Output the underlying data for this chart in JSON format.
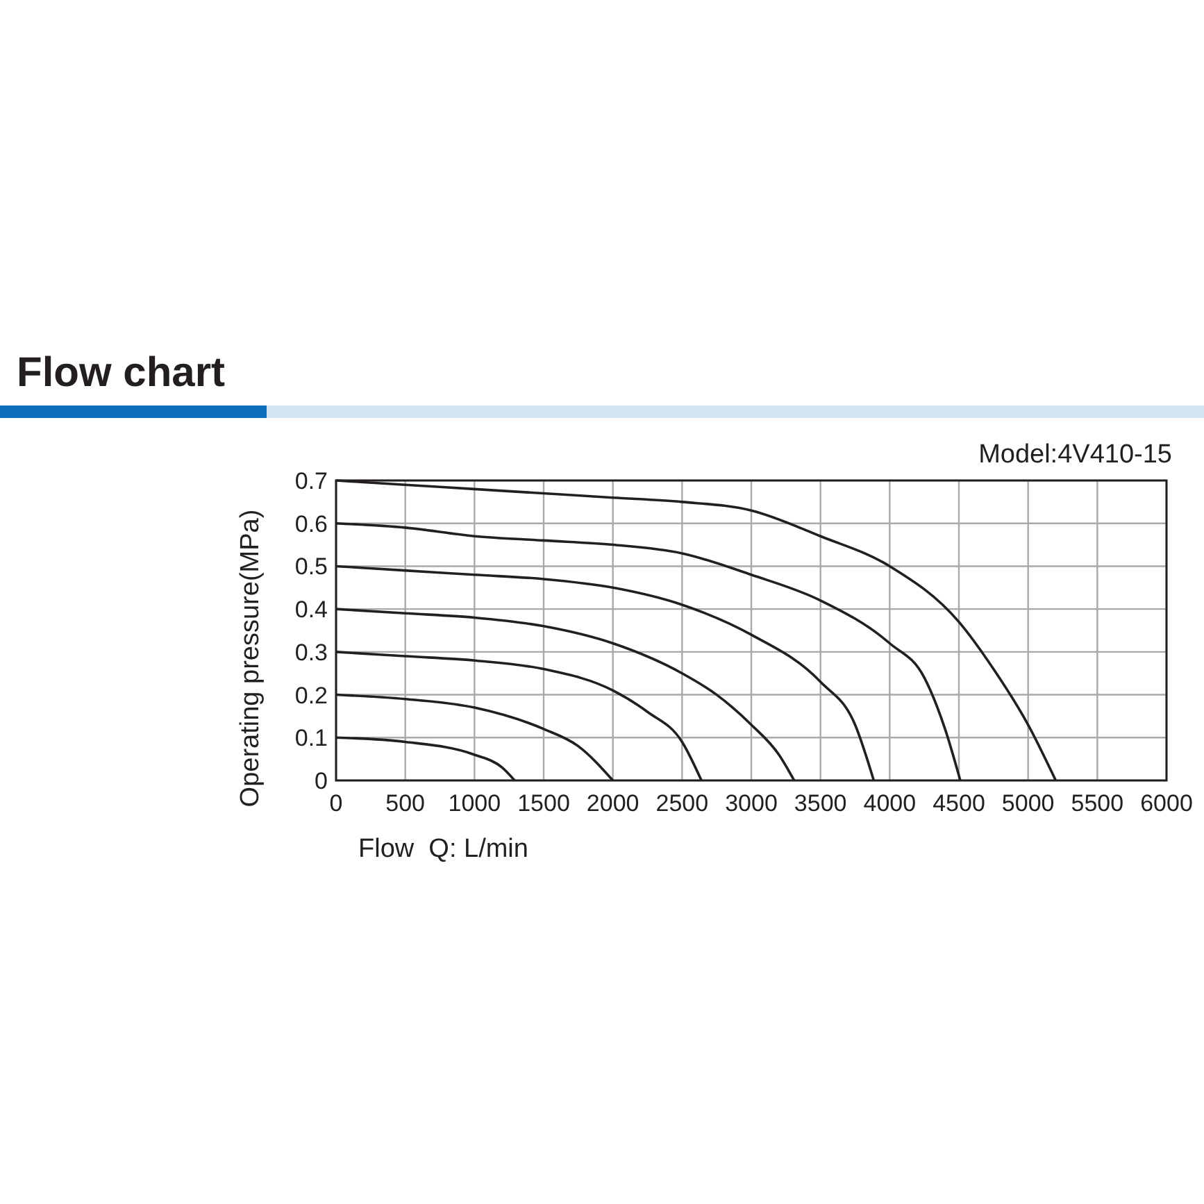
{
  "chart_data": {
    "type": "line",
    "title": "Flow chart",
    "subtitle": "Model:4V410-15",
    "xlabel": "Flow  Q: L/min",
    "ylabel": "Operating pressure(MPa)",
    "xlim": [
      0,
      6000
    ],
    "ylim": [
      0,
      0.7
    ],
    "xticks": [
      0,
      500,
      1000,
      1500,
      2000,
      2500,
      3000,
      3500,
      4000,
      4500,
      5000,
      5500,
      6000
    ],
    "yticks": [
      0,
      0.1,
      0.2,
      0.3,
      0.4,
      0.5,
      0.6,
      0.7
    ],
    "grid": true,
    "marker": "none",
    "line_style": "solid",
    "series": [
      {
        "color": "#231f20",
        "x": [
          0,
          500,
          1000,
          1200,
          1290
        ],
        "values": [
          0.1,
          0.09,
          0.06,
          0.03,
          0
        ]
      },
      {
        "color": "#231f20",
        "x": [
          0,
          500,
          1000,
          1500,
          1750,
          2000
        ],
        "values": [
          0.2,
          0.19,
          0.17,
          0.12,
          0.08,
          0
        ]
      },
      {
        "color": "#231f20",
        "x": [
          0,
          500,
          1000,
          1500,
          2000,
          2250,
          2500,
          2640
        ],
        "values": [
          0.3,
          0.29,
          0.28,
          0.26,
          0.21,
          0.16,
          0.09,
          0
        ]
      },
      {
        "color": "#231f20",
        "x": [
          0,
          500,
          1000,
          1500,
          2000,
          2500,
          2750,
          3000,
          3200,
          3310
        ],
        "values": [
          0.4,
          0.39,
          0.38,
          0.36,
          0.32,
          0.25,
          0.2,
          0.13,
          0.06,
          0
        ]
      },
      {
        "color": "#231f20",
        "x": [
          0,
          500,
          1000,
          1500,
          2000,
          2500,
          3000,
          3500,
          3750,
          3885
        ],
        "values": [
          0.5,
          0.49,
          0.48,
          0.47,
          0.45,
          0.41,
          0.34,
          0.23,
          0.13,
          0
        ]
      },
      {
        "color": "#231f20",
        "x": [
          0,
          500,
          1000,
          1500,
          2000,
          2500,
          3000,
          3500,
          4000,
          4250,
          4400,
          4510
        ],
        "values": [
          0.6,
          0.59,
          0.57,
          0.56,
          0.55,
          0.53,
          0.48,
          0.42,
          0.32,
          0.24,
          0.12,
          0
        ]
      },
      {
        "color": "#231f20",
        "x": [
          0,
          500,
          1000,
          1500,
          2000,
          2500,
          3000,
          3500,
          4000,
          4500,
          4750,
          5000,
          5200
        ],
        "values": [
          0.7,
          0.69,
          0.68,
          0.67,
          0.66,
          0.65,
          0.63,
          0.57,
          0.5,
          0.37,
          0.26,
          0.13,
          0
        ]
      }
    ]
  }
}
